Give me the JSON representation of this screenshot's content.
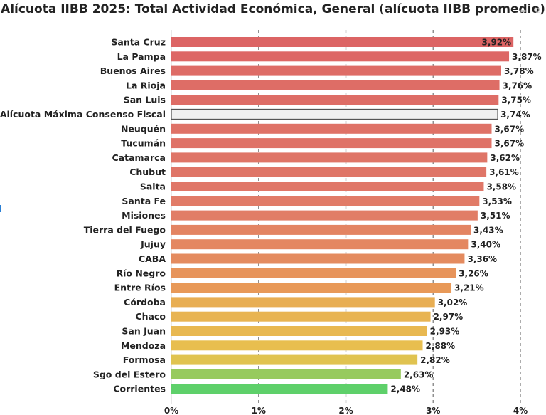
{
  "chart_data": {
    "type": "bar",
    "orientation": "horizontal",
    "title": "Alícuota IIBB 2025: Total Actividad Económica, General (alícuota IIBB promedio)",
    "categories": [
      "Santa Cruz",
      "La Pampa",
      "Buenos Aires",
      "La Rioja",
      "San Luis",
      "Alícuota Máxima Consenso Fiscal",
      "Neuquén",
      "Tucumán",
      "Catamarca",
      "Chubut",
      "Salta",
      "Santa Fe",
      "Misiones",
      "Tierra del Fuego",
      "Jujuy",
      "CABA",
      "Río Negro",
      "Entre Ríos",
      "Córdoba",
      "Chaco",
      "San Juan",
      "Mendoza",
      "Formosa",
      "Sgo del Estero",
      "Corrientes"
    ],
    "values": [
      3.92,
      3.87,
      3.78,
      3.76,
      3.75,
      3.74,
      3.67,
      3.67,
      3.62,
      3.61,
      3.58,
      3.53,
      3.51,
      3.43,
      3.4,
      3.36,
      3.26,
      3.21,
      3.02,
      2.97,
      2.93,
      2.88,
      2.82,
      2.63,
      2.48
    ],
    "value_labels": [
      "3,92%",
      "3,87%",
      "3,78%",
      "3,76%",
      "3,75%",
      "3,74%",
      "3,67%",
      "3,67%",
      "3,62%",
      "3,61%",
      "3,58%",
      "3,53%",
      "3,51%",
      "3,43%",
      "3,40%",
      "3,36%",
      "3,26%",
      "3,21%",
      "3,02%",
      "2,97%",
      "2,93%",
      "2,88%",
      "2,82%",
      "2,63%",
      "2,48%"
    ],
    "x_ticks": [
      0,
      1,
      2,
      3,
      4
    ],
    "x_tick_labels": [
      "0%",
      "1%",
      "2%",
      "3%",
      "4%"
    ],
    "xlim": [
      0,
      4
    ],
    "grid": "vertical dashed",
    "color_scale": [
      "#5ed06a",
      "#e8c24e",
      "#e89a58",
      "#e07868",
      "#dc6464"
    ],
    "highlight": {
      "category": "Alícuota Máxima Consenso Fiscal",
      "fill": "#f0f0f0",
      "stroke": "#555555"
    }
  }
}
